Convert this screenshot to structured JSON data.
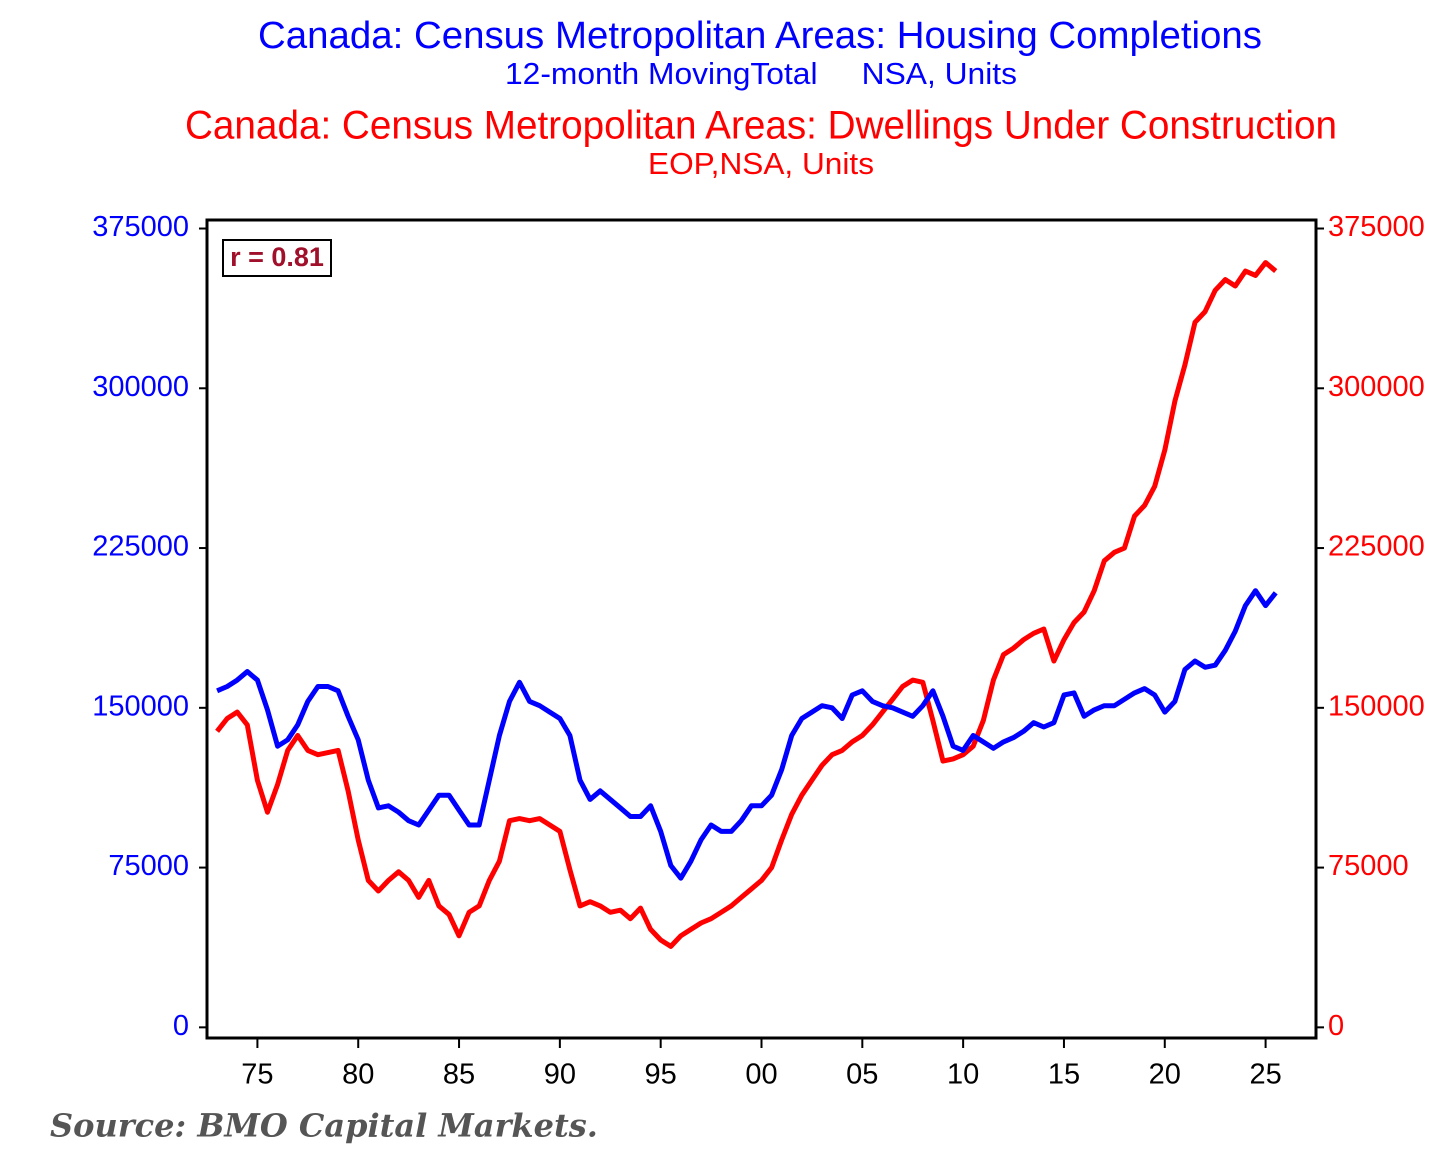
{
  "chart_data": {
    "type": "line",
    "annotations": [
      {
        "text": "r = 0.81"
      }
    ],
    "source": "Source: BMO Capital Markets.",
    "x": [
      1973,
      1973.5,
      1974,
      1974.5,
      1975,
      1975.5,
      1976,
      1976.5,
      1977,
      1977.5,
      1978,
      1978.5,
      1979,
      1979.5,
      1980,
      1980.5,
      1981,
      1981.5,
      1982,
      1982.5,
      1983,
      1983.5,
      1984,
      1984.5,
      1985,
      1985.5,
      1986,
      1986.5,
      1987,
      1987.5,
      1988,
      1988.5,
      1989,
      1989.5,
      1990,
      1990.5,
      1991,
      1991.5,
      1992,
      1992.5,
      1993,
      1993.5,
      1994,
      1994.5,
      1995,
      1995.5,
      1996,
      1996.5,
      1997,
      1997.5,
      1998,
      1998.5,
      1999,
      1999.5,
      2000,
      2000.5,
      2001,
      2001.5,
      2002,
      2002.5,
      2003,
      2003.5,
      2004,
      2004.5,
      2005,
      2005.5,
      2006,
      2006.5,
      2007,
      2007.5,
      2008,
      2008.5,
      2009,
      2009.5,
      2010,
      2010.5,
      2011,
      2011.5,
      2012,
      2012.5,
      2013,
      2013.5,
      2014,
      2014.5,
      2015,
      2015.5,
      2016,
      2016.5,
      2017,
      2017.5,
      2018,
      2018.5,
      2019,
      2019.5,
      2020,
      2020.5,
      2021,
      2021.5,
      2022,
      2022.5,
      2023,
      2023.5,
      2024,
      2024.5,
      2025,
      2025.5
    ],
    "series": [
      {
        "name": "Canada: Census Metropolitan Areas: Housing Completions",
        "units": "12-month MovingTotal     NSA, Units",
        "color": "#0000ff",
        "axis": "y",
        "values": [
          158000,
          160000,
          163000,
          167000,
          163000,
          149000,
          132000,
          135000,
          142000,
          153000,
          160000,
          160000,
          158000,
          146000,
          135000,
          116000,
          103000,
          104000,
          101000,
          97000,
          95000,
          102000,
          109000,
          109000,
          102000,
          95000,
          95000,
          116000,
          137000,
          153000,
          162000,
          153000,
          151000,
          148000,
          145000,
          137000,
          116000,
          107000,
          111000,
          107000,
          103000,
          99000,
          99000,
          104000,
          92000,
          76000,
          70000,
          78000,
          88000,
          95000,
          92000,
          92000,
          97000,
          104000,
          104000,
          109000,
          121000,
          137000,
          145000,
          148000,
          151000,
          150000,
          145000,
          156000,
          158000,
          153000,
          151000,
          150000,
          148000,
          146000,
          151000,
          158000,
          146000,
          132000,
          130000,
          137000,
          134000,
          131000,
          134000,
          136000,
          139000,
          143000,
          141000,
          143000,
          156000,
          157000,
          146000,
          149000,
          151000,
          151000,
          154000,
          157000,
          159000,
          156000,
          148000,
          153000,
          168000,
          172000,
          169000,
          170000,
          177000,
          186000,
          198000,
          205000,
          198000,
          204000
        ]
      },
      {
        "name": "Canada: Census Metropolitan Areas: Dwellings Under Construction",
        "units": "EOP,NSA, Units",
        "color": "#ff0000",
        "axis": "y2",
        "values": [
          139000,
          145000,
          148000,
          142000,
          116000,
          101000,
          114000,
          130000,
          137000,
          130000,
          128000,
          129000,
          130000,
          111000,
          88000,
          69000,
          64000,
          69000,
          73000,
          69000,
          61000,
          69000,
          57000,
          53000,
          43000,
          54000,
          57000,
          69000,
          78000,
          97000,
          98000,
          97000,
          98000,
          95000,
          92000,
          74000,
          57000,
          59000,
          57000,
          54000,
          55000,
          51000,
          56000,
          46000,
          41000,
          38000,
          43000,
          46000,
          49000,
          51000,
          54000,
          57000,
          61000,
          65000,
          69000,
          75000,
          88000,
          100000,
          109000,
          116000,
          123000,
          128000,
          130000,
          134000,
          137000,
          142000,
          148000,
          154000,
          160000,
          163000,
          162000,
          144000,
          125000,
          126000,
          128000,
          132000,
          144000,
          163000,
          175000,
          178000,
          182000,
          185000,
          187000,
          172000,
          182000,
          190000,
          195000,
          205000,
          219000,
          223000,
          225000,
          240000,
          245000,
          254000,
          271000,
          294000,
          311000,
          331000,
          336000,
          346000,
          351000,
          348000,
          355000,
          353000,
          359000,
          355000
        ]
      }
    ],
    "xlim": [
      1972.5,
      2027.5
    ],
    "xticks": [
      {
        "value": 1975,
        "label": "75"
      },
      {
        "value": 1980,
        "label": "80"
      },
      {
        "value": 1985,
        "label": "85"
      },
      {
        "value": 1990,
        "label": "90"
      },
      {
        "value": 1995,
        "label": "95"
      },
      {
        "value": 2000,
        "label": "00"
      },
      {
        "value": 2005,
        "label": "05"
      },
      {
        "value": 2010,
        "label": "10"
      },
      {
        "value": 2015,
        "label": "15"
      },
      {
        "value": 2020,
        "label": "20"
      },
      {
        "value": 2025,
        "label": "25"
      }
    ],
    "ylim": [
      -5000,
      379000
    ],
    "yticks": [
      0,
      75000,
      150000,
      225000,
      300000,
      375000
    ],
    "y2lim": [
      -5000,
      379000
    ],
    "y2ticks": [
      0,
      75000,
      150000,
      225000,
      300000,
      375000
    ],
    "grid": false
  }
}
